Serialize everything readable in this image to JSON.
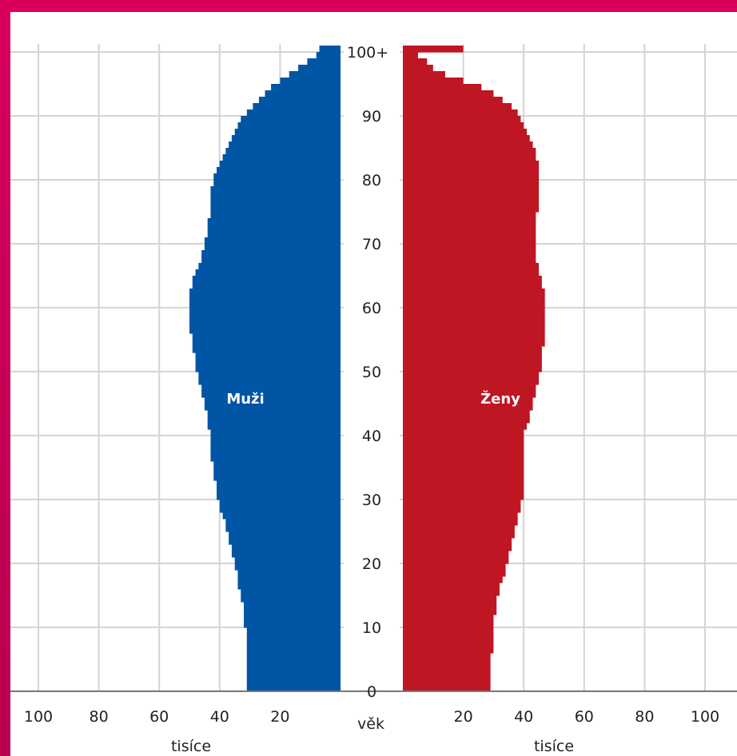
{
  "chart_data": {
    "type": "population-pyramid",
    "age_axis_title": "věk",
    "x_axis_unit": "tisíce",
    "x_ticks": [
      100,
      80,
      60,
      40,
      20
    ],
    "x_ticks_right": [
      20,
      40,
      60,
      80,
      100
    ],
    "age_ticks": [
      "0",
      "10",
      "20",
      "30",
      "40",
      "50",
      "60",
      "70",
      "80",
      "90",
      "100+"
    ],
    "xlim": [
      0,
      100
    ],
    "age_range": [
      0,
      100
    ],
    "grid": true,
    "series": [
      {
        "name": "Muži",
        "side": "left",
        "color": "#0055a5",
        "values": [
          31,
          31,
          31,
          31,
          31,
          31,
          31,
          31,
          31,
          31,
          32,
          32,
          32,
          32,
          33,
          33,
          34,
          34,
          34,
          35,
          35,
          36,
          36,
          37,
          37,
          38,
          38,
          39,
          40,
          40,
          41,
          41,
          41,
          42,
          42,
          42,
          43,
          43,
          43,
          43,
          43,
          44,
          44,
          44,
          45,
          45,
          46,
          46,
          47,
          47,
          48,
          48,
          48,
          49,
          49,
          49,
          50,
          50,
          50,
          50,
          50,
          50,
          50,
          49,
          49,
          48,
          47,
          46,
          46,
          45,
          45,
          44,
          44,
          44,
          43,
          43,
          43,
          43,
          43,
          42,
          42,
          41,
          40,
          39,
          38,
          37,
          36,
          35,
          34,
          33,
          31,
          29,
          27,
          25,
          23,
          20,
          17,
          14,
          11,
          8,
          7
        ]
      },
      {
        "name": "Ženy",
        "side": "right",
        "color": "#be1622",
        "values": [
          29,
          29,
          29,
          29,
          29,
          29,
          30,
          30,
          30,
          30,
          30,
          30,
          31,
          31,
          31,
          32,
          32,
          33,
          34,
          34,
          35,
          35,
          36,
          36,
          37,
          37,
          38,
          38,
          39,
          39,
          40,
          40,
          40,
          40,
          40,
          40,
          40,
          40,
          40,
          40,
          40,
          41,
          42,
          42,
          43,
          43,
          44,
          44,
          45,
          45,
          46,
          46,
          46,
          46,
          47,
          47,
          47,
          47,
          47,
          47,
          47,
          47,
          47,
          46,
          46,
          45,
          45,
          44,
          44,
          44,
          44,
          44,
          44,
          44,
          44,
          45,
          45,
          45,
          45,
          45,
          45,
          45,
          45,
          44,
          44,
          43,
          42,
          41,
          40,
          39,
          38,
          36,
          33,
          30,
          26,
          20,
          14,
          10,
          8,
          5,
          20
        ]
      }
    ]
  }
}
